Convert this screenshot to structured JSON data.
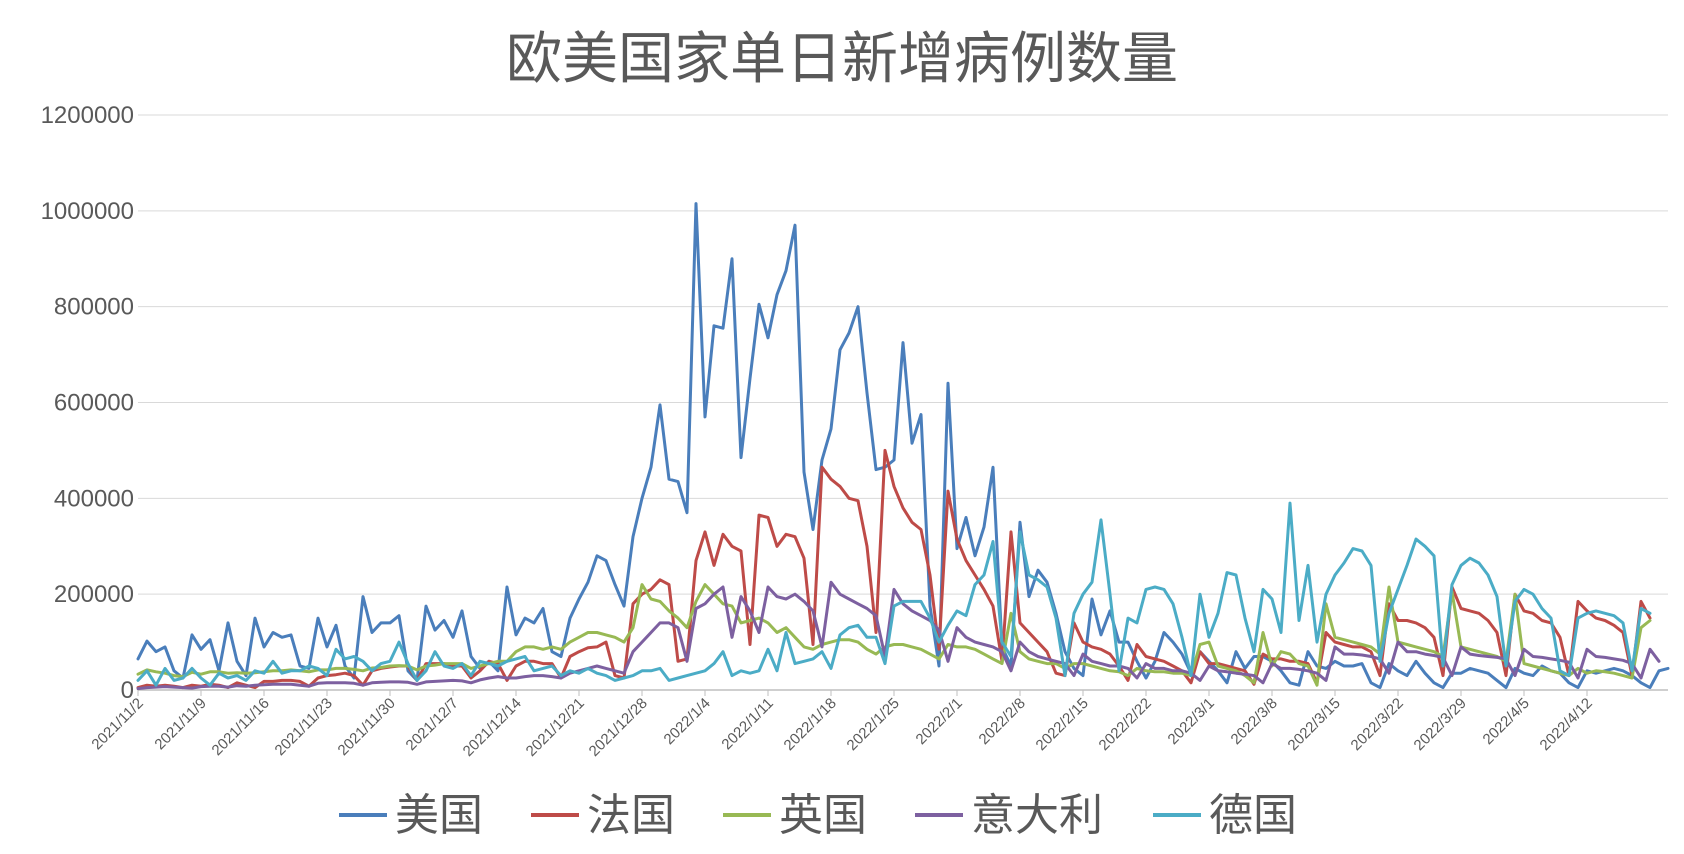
{
  "chart_data": {
    "type": "line",
    "title": "欧美国家单日新增病例数量",
    "xlabel": "",
    "ylabel": "",
    "ylim": [
      0,
      1200000
    ],
    "yticks": [
      0,
      200000,
      400000,
      600000,
      800000,
      1000000,
      1200000
    ],
    "ytick_labels": [
      "0",
      "200000",
      "400000",
      "600000",
      "800000",
      "1000000",
      "1200000"
    ],
    "x_start": "2021/11/2",
    "xtick_labels": [
      "2021/11/2",
      "2021/11/9",
      "2021/11/16",
      "2021/11/23",
      "2021/11/30",
      "2021/12/7",
      "2021/12/14",
      "2021/12/21",
      "2021/12/28",
      "2022/1/4",
      "2022/1/11",
      "2022/1/18",
      "2022/1/25",
      "2022/2/1",
      "2022/2/8",
      "2022/2/15",
      "2022/2/22",
      "2022/3/1",
      "2022/3/8",
      "2022/3/15",
      "2022/3/22",
      "2022/3/29",
      "2022/4/5",
      "2022/4/12"
    ],
    "grid": true,
    "legend_position": "bottom",
    "series": [
      {
        "name": "美国",
        "color": "#4a7ebb",
        "values": [
          65000,
          102000,
          80000,
          90000,
          40000,
          25000,
          115000,
          85000,
          105000,
          40000,
          140000,
          60000,
          30000,
          150000,
          90000,
          120000,
          110000,
          115000,
          50000,
          45000,
          150000,
          90000,
          135000,
          50000,
          25000,
          195000,
          120000,
          140000,
          140000,
          155000,
          40000,
          20000,
          175000,
          125000,
          145000,
          110000,
          165000,
          70000,
          45000,
          60000,
          40000,
          215000,
          115000,
          150000,
          140000,
          170000,
          80000,
          70000,
          150000,
          190000,
          225000,
          280000,
          270000,
          220000,
          175000,
          320000,
          400000,
          465000,
          595000,
          440000,
          435000,
          370000,
          1015000,
          570000,
          760000,
          755000,
          900000,
          485000,
          650000,
          805000,
          735000,
          825000,
          875000,
          970000,
          455000,
          335000,
          480000,
          545000,
          710000,
          745000,
          800000,
          620000,
          460000,
          465000,
          480000,
          725000,
          515000,
          575000,
          175000,
          50000,
          640000,
          295000,
          360000,
          280000,
          340000,
          465000,
          90000,
          50000,
          350000,
          195000,
          250000,
          225000,
          160000,
          80000,
          45000,
          30000,
          190000,
          115000,
          165000,
          100000,
          100000,
          60000,
          25000,
          60000,
          120000,
          100000,
          75000,
          35000,
          80000,
          60000,
          40000,
          15000,
          80000,
          45000,
          70000,
          70000,
          60000,
          40000,
          15000,
          10000,
          80000,
          50000,
          45000,
          60000,
          50000,
          50000,
          55000,
          15000,
          5000,
          55000,
          40000,
          30000,
          60000,
          35000,
          15000,
          5000,
          35000,
          35000,
          45000,
          40000,
          35000,
          20000,
          5000,
          45000,
          35000,
          30000,
          50000,
          40000,
          35000,
          15000,
          5000,
          40000,
          35000,
          40000,
          45000,
          40000,
          30000,
          15000,
          5000,
          40000,
          45000
        ],
        "_note": "see script"
      },
      {
        "name": "法国",
        "color": "#be4b48",
        "values": [
          5000,
          10000,
          8000,
          10000,
          8000,
          5000,
          10000,
          8000,
          12000,
          10000,
          5000,
          15000,
          10000,
          5000,
          18000,
          18000,
          20000,
          20000,
          18000,
          8000,
          25000,
          30000,
          32000,
          35000,
          30000,
          10000,
          40000,
          45000,
          48000,
          50000,
          50000,
          20000,
          55000,
          55000,
          55000,
          50000,
          50000,
          25000,
          40000,
          60000,
          55000,
          20000,
          50000,
          60000,
          60000,
          55000,
          55000,
          25000,
          70000,
          80000,
          88000,
          90000,
          100000,
          30000,
          25000,
          180000,
          200000,
          210000,
          230000,
          220000,
          60000,
          65000,
          270000,
          330000,
          260000,
          325000,
          300000,
          290000,
          95000,
          365000,
          360000,
          300000,
          325000,
          320000,
          275000,
          95000,
          465000,
          440000,
          425000,
          400000,
          395000,
          300000,
          120000,
          500000,
          425000,
          380000,
          350000,
          335000,
          240000,
          85000,
          415000,
          315000,
          270000,
          240000,
          210000,
          175000,
          60000,
          330000,
          140000,
          120000,
          100000,
          80000,
          35000,
          30000,
          140000,
          100000,
          90000,
          85000,
          75000,
          50000,
          20000,
          95000,
          70000,
          65000,
          60000,
          50000,
          40000,
          15000,
          80000,
          55000,
          55000,
          50000,
          45000,
          40000,
          12000,
          75000,
          65000,
          65000,
          60000,
          60000,
          55000,
          15000,
          120000,
          100000,
          95000,
          90000,
          90000,
          80000,
          30000,
          180000,
          145000,
          145000,
          140000,
          130000,
          110000,
          30000,
          215000,
          170000,
          165000,
          160000,
          145000,
          120000,
          30000,
          200000,
          165000,
          160000,
          145000,
          140000,
          110000,
          30000,
          185000,
          165000,
          150000,
          145000,
          135000,
          120000,
          30000,
          185000,
          150000
        ],
        "_note": "see script"
      },
      {
        "name": "英国",
        "color": "#98b954",
        "values": [
          33000,
          42000,
          38000,
          35000,
          30000,
          28000,
          37000,
          33000,
          38000,
          38000,
          35000,
          36000,
          35000,
          36000,
          38000,
          40000,
          40000,
          42000,
          40000,
          38000,
          42000,
          42000,
          45000,
          45000,
          43000,
          40000,
          46000,
          47000,
          50000,
          51000,
          50000,
          42000,
          50000,
          52000,
          55000,
          55000,
          55000,
          45000,
          50000,
          55000,
          60000,
          60000,
          80000,
          90000,
          90000,
          85000,
          90000,
          85000,
          100000,
          110000,
          120000,
          120000,
          115000,
          110000,
          100000,
          130000,
          220000,
          190000,
          185000,
          165000,
          150000,
          130000,
          185000,
          220000,
          200000,
          180000,
          175000,
          140000,
          145000,
          150000,
          140000,
          120000,
          130000,
          110000,
          90000,
          85000,
          95000,
          100000,
          105000,
          105000,
          100000,
          85000,
          75000,
          90000,
          95000,
          95000,
          90000,
          85000,
          75000,
          65000,
          95000,
          90000,
          90000,
          85000,
          75000,
          65000,
          55000,
          160000,
          80000,
          65000,
          60000,
          55000,
          55000,
          45000,
          55000,
          55000,
          50000,
          45000,
          40000,
          38000,
          30000,
          45000,
          40000,
          38000,
          38000,
          35000,
          35000,
          30000,
          95000,
          100000,
          50000,
          45000,
          40000,
          30000,
          15000,
          120000,
          50000,
          80000,
          75000,
          55000,
          50000,
          10000,
          180000,
          110000,
          105000,
          100000,
          95000,
          90000,
          75000,
          215000,
          100000,
          95000,
          90000,
          85000,
          80000,
          70000,
          205000,
          90000,
          85000,
          80000,
          75000,
          70000,
          60000,
          200000,
          55000,
          50000,
          45000,
          40000,
          35000,
          30000,
          45000,
          35000,
          40000,
          38000,
          35000,
          30000,
          25000,
          130000,
          145000
        ],
        "_note": "see script"
      },
      {
        "name": "意大利",
        "color": "#7d60a0",
        "values": [
          3000,
          5000,
          6000,
          7000,
          6000,
          5000,
          4000,
          7000,
          8000,
          8000,
          6000,
          9000,
          8000,
          10000,
          11000,
          12000,
          12000,
          12000,
          10000,
          8000,
          14000,
          15000,
          15000,
          15000,
          14000,
          10000,
          15000,
          16000,
          17000,
          17000,
          16000,
          12000,
          17000,
          18000,
          19000,
          20000,
          19000,
          15000,
          21000,
          25000,
          28000,
          25000,
          25000,
          28000,
          30000,
          30000,
          28000,
          25000,
          35000,
          40000,
          45000,
          50000,
          45000,
          40000,
          35000,
          80000,
          100000,
          120000,
          140000,
          140000,
          130000,
          60000,
          170000,
          180000,
          200000,
          215000,
          110000,
          195000,
          165000,
          120000,
          215000,
          195000,
          190000,
          200000,
          185000,
          165000,
          90000,
          225000,
          200000,
          190000,
          180000,
          170000,
          155000,
          70000,
          210000,
          180000,
          165000,
          155000,
          145000,
          125000,
          60000,
          130000,
          110000,
          100000,
          95000,
          90000,
          80000,
          40000,
          100000,
          80000,
          70000,
          65000,
          60000,
          55000,
          30000,
          75000,
          60000,
          55000,
          50000,
          50000,
          45000,
          25000,
          55000,
          45000,
          45000,
          40000,
          40000,
          35000,
          20000,
          50000,
          40000,
          38000,
          35000,
          33000,
          30000,
          15000,
          55000,
          45000,
          45000,
          43000,
          40000,
          35000,
          20000,
          90000,
          75000,
          75000,
          73000,
          70000,
          65000,
          35000,
          100000,
          80000,
          80000,
          75000,
          72000,
          68000,
          30000,
          90000,
          75000,
          72000,
          70000,
          68000,
          65000,
          30000,
          85000,
          70000,
          68000,
          65000,
          62000,
          58000,
          25000,
          85000,
          70000,
          68000,
          65000,
          62000,
          55000,
          25000,
          85000,
          60000
        ],
        "_note": "see script"
      },
      {
        "name": "德国",
        "color": "#4bacc6",
        "values": [
          20000,
          40000,
          10000,
          45000,
          20000,
          25000,
          45000,
          25000,
          10000,
          35000,
          25000,
          30000,
          20000,
          40000,
          35000,
          60000,
          35000,
          40000,
          40000,
          50000,
          45000,
          30000,
          85000,
          65000,
          70000,
          60000,
          40000,
          55000,
          60000,
          100000,
          55000,
          20000,
          40000,
          80000,
          50000,
          45000,
          55000,
          30000,
          60000,
          55000,
          50000,
          60000,
          65000,
          70000,
          40000,
          45000,
          50000,
          30000,
          40000,
          35000,
          45000,
          35000,
          30000,
          20000,
          25000,
          30000,
          40000,
          40000,
          45000,
          20000,
          25000,
          30000,
          35000,
          40000,
          55000,
          80000,
          30000,
          40000,
          35000,
          40000,
          85000,
          40000,
          120000,
          55000,
          60000,
          65000,
          80000,
          45000,
          115000,
          130000,
          135000,
          110000,
          110000,
          55000,
          175000,
          185000,
          185000,
          185000,
          150000,
          100000,
          135000,
          165000,
          155000,
          220000,
          240000,
          310000,
          100000,
          70000,
          330000,
          240000,
          230000,
          215000,
          150000,
          30000,
          160000,
          200000,
          225000,
          355000,
          200000,
          40000,
          150000,
          140000,
          210000,
          215000,
          210000,
          180000,
          110000,
          30000,
          200000,
          110000,
          160000,
          245000,
          240000,
          150000,
          80000,
          210000,
          190000,
          120000,
          390000,
          145000,
          260000,
          100000,
          200000,
          240000,
          265000,
          295000,
          290000,
          260000,
          60000,
          160000,
          210000,
          260000,
          315000,
          300000,
          280000,
          50000,
          220000,
          260000,
          275000,
          265000,
          240000,
          195000,
          50000,
          185000,
          210000,
          200000,
          170000,
          150000,
          40000,
          30000,
          150000,
          160000,
          165000,
          160000,
          155000,
          140000,
          40000,
          170000,
          160000
        ],
        "_note": "see script"
      }
    ]
  }
}
